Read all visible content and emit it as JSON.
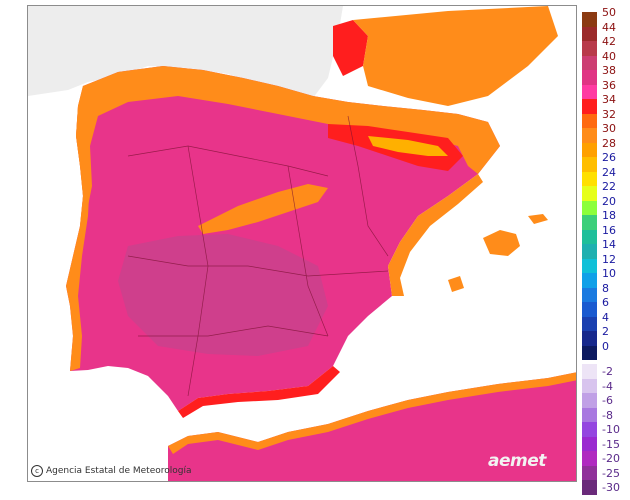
{
  "map": {
    "credit": "Agencia Estatal de Meteorología",
    "brand": "aemet",
    "icon_name": "copyright-icon",
    "land_colors": {
      "base": "#e8348a",
      "hot_core": "#cf3f8c",
      "warm": "#ff8c1a",
      "mid": "#ffb000",
      "very_hot": "#ff1e1e",
      "sea": "#ffffff",
      "outside": "#ededed"
    }
  },
  "legend": {
    "positive": [
      {
        "label": "50",
        "color": "#8b3a12"
      },
      {
        "label": "44",
        "color": "#9b2a2a"
      },
      {
        "label": "42",
        "color": "#b83a4a"
      },
      {
        "label": "40",
        "color": "#cc3e72"
      },
      {
        "label": "38",
        "color": "#e03484"
      },
      {
        "label": "36",
        "color": "#ff3aa2"
      },
      {
        "label": "34",
        "color": "#ff1e1e"
      },
      {
        "label": "32",
        "color": "#ff6a10"
      },
      {
        "label": "30",
        "color": "#ff8c1a"
      },
      {
        "label": "28",
        "color": "#ffa000"
      },
      {
        "label": "26",
        "color": "#ffbe00"
      },
      {
        "label": "24",
        "color": "#ffe000"
      },
      {
        "label": "22",
        "color": "#e6ff1a"
      },
      {
        "label": "20",
        "color": "#8cff3c"
      },
      {
        "label": "18",
        "color": "#3ccf7a"
      },
      {
        "label": "16",
        "color": "#1fbf9a"
      },
      {
        "label": "14",
        "color": "#1fb0b0"
      },
      {
        "label": "12",
        "color": "#10c0d8"
      },
      {
        "label": "10",
        "color": "#10a0e8"
      },
      {
        "label": "8",
        "color": "#1a7ae0"
      },
      {
        "label": "6",
        "color": "#1a5ad0"
      },
      {
        "label": "4",
        "color": "#1a40b0"
      },
      {
        "label": "2",
        "color": "#16288c"
      },
      {
        "label": "0",
        "color": "#0c1a60"
      }
    ],
    "negative": [
      {
        "label": "-2",
        "color": "#ede4f6"
      },
      {
        "label": "-4",
        "color": "#d8c4ee"
      },
      {
        "label": "-6",
        "color": "#c0a0e6"
      },
      {
        "label": "-8",
        "color": "#a878e0"
      },
      {
        "label": "-10",
        "color": "#9446e0"
      },
      {
        "label": "-15",
        "color": "#9a2ad0"
      },
      {
        "label": "-20",
        "color": "#b02ac0"
      },
      {
        "label": "-25",
        "color": "#90309a"
      },
      {
        "label": "-30",
        "color": "#6a2a7a"
      }
    ]
  }
}
